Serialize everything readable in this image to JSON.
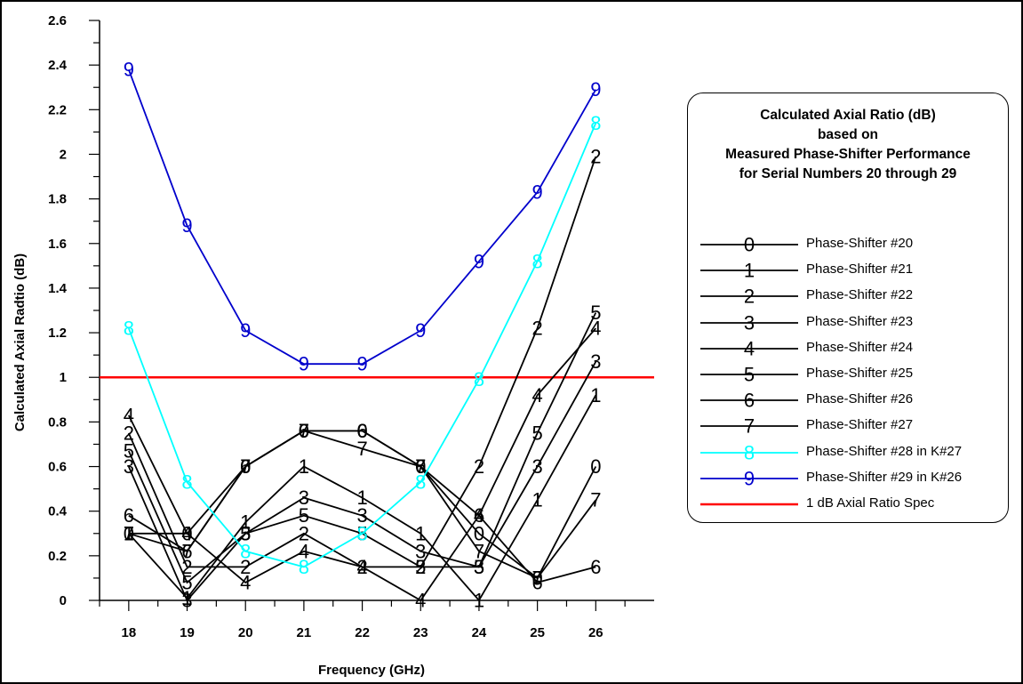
{
  "chart_data": {
    "type": "line",
    "xlabel": "Frequency (GHz)",
    "ylabel": "Calculated Axial Radtio (dB)",
    "x": [
      18,
      19,
      20,
      21,
      22,
      23,
      24,
      25,
      26
    ],
    "x_tick_labels": [
      "18",
      "19",
      "20",
      "21",
      "22",
      "23",
      "24",
      "25",
      "26"
    ],
    "xlim": [
      17.5,
      27
    ],
    "ylim": [
      0,
      2.6
    ],
    "y_tick_labels": [
      "0",
      "0.2",
      "0.4",
      "0.6",
      "0.8",
      "1",
      "1.2",
      "1.4",
      "1.6",
      "1.8",
      "2",
      "2.2",
      "2.4",
      "2.6"
    ],
    "grid": false,
    "legend_placement": "right",
    "legend_title": [
      "Calculated Axial Ratio (dB)",
      "based on",
      "Measured Phase-Shifter Performance",
      "for Serial Numbers 20 through 29"
    ],
    "series": [
      {
        "name": "Phase-Shifter #20",
        "marker": "0",
        "color": "#000000",
        "values": [
          0.3,
          0.3,
          0.6,
          0.76,
          0.76,
          0.6,
          0.3,
          0.1,
          0.6
        ]
      },
      {
        "name": "Phase-Shifter #21",
        "marker": "1",
        "color": "#000000",
        "values": [
          0.3,
          0.01,
          0.35,
          0.6,
          0.46,
          0.3,
          0.0,
          0.45,
          0.92
        ]
      },
      {
        "name": "Phase-Shifter #22",
        "marker": "2",
        "color": "#000000",
        "values": [
          0.75,
          0.15,
          0.15,
          0.3,
          0.15,
          0.15,
          0.6,
          1.22,
          1.99
        ]
      },
      {
        "name": "Phase-Shifter #23",
        "marker": "3",
        "color": "#000000",
        "values": [
          0.6,
          0.0,
          0.3,
          0.46,
          0.38,
          0.22,
          0.15,
          0.6,
          1.07
        ]
      },
      {
        "name": "Phase-Shifter #24",
        "marker": "4",
        "color": "#000000",
        "values": [
          0.83,
          0.3,
          0.08,
          0.22,
          0.15,
          0.0,
          0.38,
          0.92,
          1.22
        ]
      },
      {
        "name": "Phase-Shifter #25",
        "marker": "5",
        "color": "#000000",
        "values": [
          0.67,
          0.08,
          0.3,
          0.38,
          0.3,
          0.15,
          0.15,
          0.75,
          1.29
        ]
      },
      {
        "name": "Phase-Shifter #26",
        "marker": "6",
        "color": "#000000",
        "values": [
          0.38,
          0.22,
          0.6,
          0.76,
          0.76,
          0.6,
          0.38,
          0.08,
          0.15
        ]
      },
      {
        "name": "Phase-Shifter #27",
        "marker": "7",
        "color": "#000000",
        "values": [
          0.3,
          0.22,
          0.6,
          0.76,
          0.68,
          0.6,
          0.22,
          0.1,
          0.45
        ]
      },
      {
        "name": "Phase-Shifter #28 in K#27",
        "marker": "8",
        "color": "#00ffff",
        "values": [
          1.22,
          0.53,
          0.22,
          0.15,
          0.3,
          0.53,
          0.99,
          1.52,
          2.14
        ]
      },
      {
        "name": "Phase-Shifter #29 in K#26",
        "marker": "9",
        "color": "#0000cc",
        "values": [
          2.38,
          1.68,
          1.21,
          1.06,
          1.06,
          1.21,
          1.52,
          1.83,
          2.29
        ]
      },
      {
        "name": "1 dB Axial Ratio Spec",
        "marker": "",
        "color": "#ff0000",
        "values": [
          1,
          1,
          1,
          1,
          1,
          1,
          1,
          1,
          1
        ],
        "span": "full-width"
      }
    ]
  }
}
